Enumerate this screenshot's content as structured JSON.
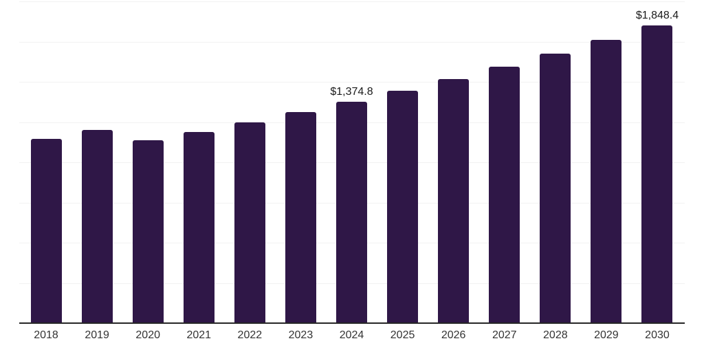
{
  "chart_data": {
    "type": "bar",
    "title": "",
    "xlabel": "",
    "ylabel": "",
    "categories": [
      "2018",
      "2019",
      "2020",
      "2021",
      "2022",
      "2023",
      "2024",
      "2025",
      "2026",
      "2027",
      "2028",
      "2029",
      "2030"
    ],
    "values": [
      1146.2,
      1201.8,
      1136.4,
      1190.1,
      1246.6,
      1311.9,
      1374.8,
      1444.4,
      1517.6,
      1594.4,
      1675.1,
      1759.4,
      1848.4
    ],
    "data_labels": {
      "2024": "$1,374.8",
      "2030": "$1,848.4"
    },
    "ylim": [
      0,
      2000
    ],
    "gridline_count": 8,
    "grid": true,
    "legend": "none",
    "colors": {
      "bar": "#2F1747",
      "grid": "#F2F2F2",
      "axis": "#262626",
      "tick_label": "#333333",
      "data_label": "#1A1A1A",
      "background": "#FFFFFF"
    }
  }
}
